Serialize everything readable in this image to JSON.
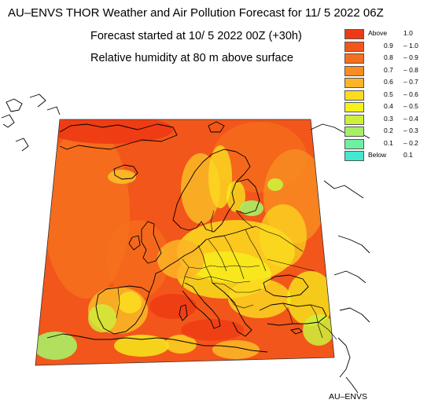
{
  "header": {
    "title": "AU–ENVS THOR Weather and Air Pollution Forecast for 11/ 5 2022  06Z",
    "forecast_started": "Forecast started at 10/ 5 2022  00Z (+30h)",
    "variable": "Relative humidity at 80 m above surface"
  },
  "legend": {
    "items": [
      {
        "a": "Above",
        "b": "1.0",
        "color": "#ee3a14"
      },
      {
        "a": "0.9",
        "b": "1.0",
        "color": "#f3561a"
      },
      {
        "a": "0.8",
        "b": "0.9",
        "color": "#f5701e"
      },
      {
        "a": "0.7",
        "b": "0.8",
        "color": "#f98d22"
      },
      {
        "a": "0.6",
        "b": "0.7",
        "color": "#fbb526"
      },
      {
        "a": "0.5",
        "b": "0.6",
        "color": "#fbdc20"
      },
      {
        "a": "0.4",
        "b": "0.5",
        "color": "#f5f21c"
      },
      {
        "a": "0.3",
        "b": "0.4",
        "color": "#cdf03c"
      },
      {
        "a": "0.2",
        "b": "0.3",
        "color": "#a8ef66"
      },
      {
        "a": "0.1",
        "b": "0.2",
        "color": "#70efa0"
      },
      {
        "a": "Below",
        "b": "0.1",
        "color": "#44e7d0"
      }
    ]
  },
  "credit": "AU–ENVS"
}
